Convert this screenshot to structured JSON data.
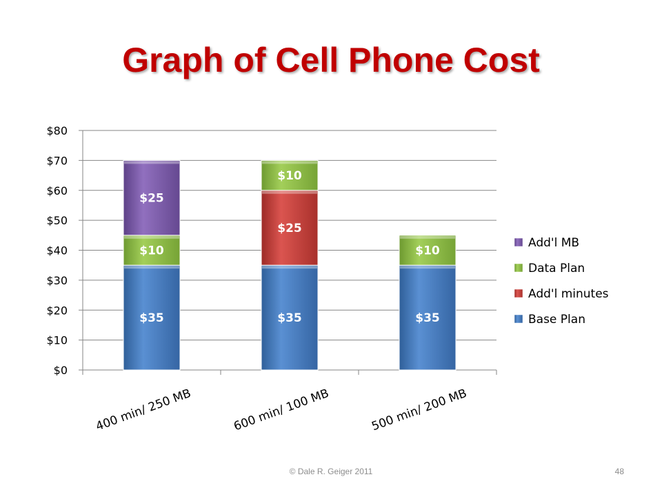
{
  "slide": {
    "title": "Graph of Cell Phone Cost",
    "footer": "© Dale R. Geiger 2011",
    "page_number": "48"
  },
  "chart_data": {
    "type": "bar",
    "stacked": true,
    "title": "",
    "xlabel": "",
    "ylabel": "",
    "categories": [
      "400 min/ 250 MB",
      "600 min/ 100 MB",
      "500 min/ 200 MB"
    ],
    "ylim": [
      0,
      80
    ],
    "yticks": [
      0,
      10,
      20,
      30,
      40,
      50,
      60,
      70,
      80
    ],
    "ytick_labels": [
      "$0",
      "$10",
      "$20",
      "$30",
      "$40",
      "$50",
      "$60",
      "$70",
      "$80"
    ],
    "grid": true,
    "legend_position": "right",
    "series": [
      {
        "name": "Base Plan",
        "color": "#4a7ebb",
        "values": [
          35,
          35,
          35
        ],
        "labels": [
          "$35",
          "$35",
          "$35"
        ]
      },
      {
        "name": "Add'l minutes",
        "color": "#c0413c",
        "values": [
          0,
          25,
          0
        ],
        "labels": [
          "",
          "$25",
          ""
        ]
      },
      {
        "name": "Data Plan",
        "color": "#8db845",
        "values": [
          10,
          10,
          10
        ],
        "labels": [
          "$10",
          "$10",
          "$10"
        ]
      },
      {
        "name": "Add'l MB",
        "color": "#7b5aa6",
        "values": [
          25,
          0,
          0
        ],
        "labels": [
          "$25",
          "",
          ""
        ]
      }
    ]
  }
}
